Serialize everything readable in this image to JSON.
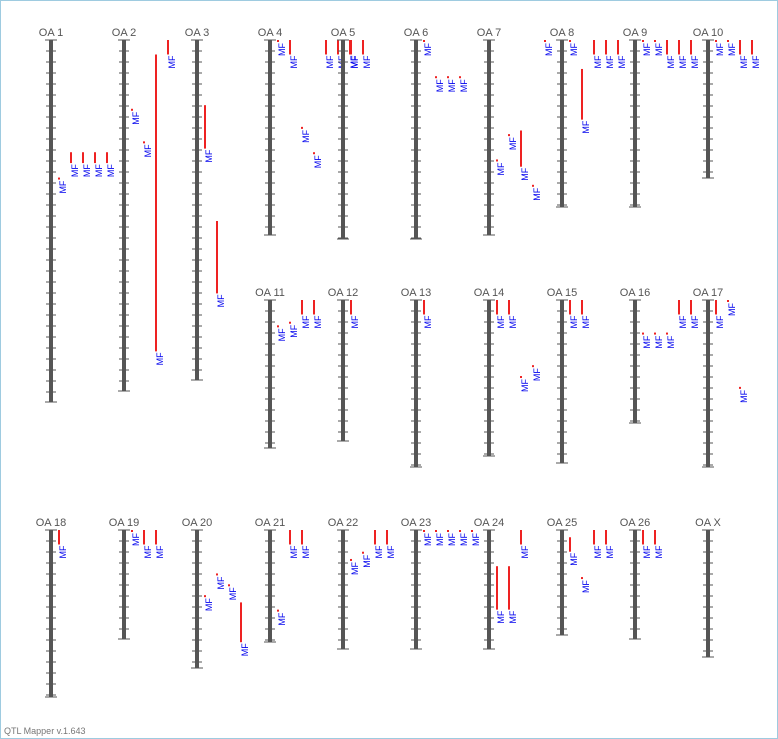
{
  "footer": "QTL Mapper v.1.643",
  "qtl_label": "MF",
  "colors": {
    "chromosome": "#555555",
    "qtl_bar": "#ee2222",
    "qtl_label": "#0000ee",
    "label": "#555555",
    "border": "#9ecbe0"
  },
  "chromosomes": [
    {
      "name": "OA 1",
      "row": 0,
      "col": 0,
      "length": 1.0,
      "qtls": [
        [
          0.38,
          0.38
        ],
        [
          0.31,
          0.34
        ],
        [
          0.31,
          0.34
        ],
        [
          0.31,
          0.34
        ],
        [
          0.31,
          0.34
        ]
      ]
    },
    {
      "name": "OA 2",
      "row": 0,
      "col": 1,
      "length": 0.97,
      "qtls": [
        [
          0.19,
          0.19
        ],
        [
          0.28,
          0.28
        ],
        [
          0.04,
          0.86
        ],
        [
          0.0,
          0.04
        ]
      ]
    },
    {
      "name": "OA 3",
      "row": 0,
      "col": 2,
      "length": 0.94,
      "qtls": [
        [
          0.18,
          0.3
        ],
        [
          0.5,
          0.7
        ]
      ]
    },
    {
      "name": "OA 4",
      "row": 0,
      "col": 3,
      "length": 0.54,
      "qtls": [
        [
          0.0,
          0.0
        ],
        [
          0.0,
          0.04
        ],
        [
          0.24,
          0.24
        ],
        [
          0.31,
          0.31
        ],
        [
          0.0,
          0.04
        ],
        [
          0.0,
          0.04
        ],
        [
          0.0,
          0.04
        ]
      ]
    },
    {
      "name": "OA 5",
      "row": 0,
      "col": 4,
      "length": 0.55,
      "qtls": [
        [
          0.0,
          0.04
        ],
        [
          0.0,
          0.04
        ]
      ]
    },
    {
      "name": "OA 6",
      "row": 0,
      "col": 5,
      "length": 0.55,
      "qtls": [
        [
          0.0,
          0.0
        ],
        [
          0.1,
          0.1
        ],
        [
          0.1,
          0.1
        ],
        [
          0.1,
          0.1
        ]
      ]
    },
    {
      "name": "OA 7",
      "row": 0,
      "col": 6,
      "length": 0.54,
      "qtls": [
        [
          0.33,
          0.33
        ],
        [
          0.26,
          0.26
        ],
        [
          0.25,
          0.35
        ],
        [
          0.4,
          0.4
        ],
        [
          0.0,
          0.0
        ]
      ]
    },
    {
      "name": "OA 8",
      "row": 0,
      "col": 7,
      "length": 0.46,
      "qtls": [
        [
          0.0,
          0.0
        ],
        [
          0.08,
          0.22
        ],
        [
          0.0,
          0.04
        ],
        [
          0.0,
          0.04
        ],
        [
          0.0,
          0.04
        ]
      ]
    },
    {
      "name": "OA 9",
      "row": 0,
      "col": 8,
      "length": 0.46,
      "qtls": [
        [
          0.0,
          0.0
        ],
        [
          0.0,
          0.0
        ],
        [
          0.0,
          0.04
        ],
        [
          0.0,
          0.04
        ],
        [
          0.0,
          0.04
        ]
      ]
    },
    {
      "name": "OA 10",
      "row": 0,
      "col": 9,
      "length": 0.38,
      "qtls": [
        [
          0.0,
          0.0
        ],
        [
          0.0,
          0.0
        ],
        [
          0.0,
          0.04
        ],
        [
          0.0,
          0.04
        ]
      ]
    },
    {
      "name": "OA 11",
      "row": 1,
      "col": 3,
      "length": 0.41,
      "qtls": [
        [
          0.07,
          0.07
        ],
        [
          0.06,
          0.06
        ],
        [
          0.0,
          0.04
        ],
        [
          0.0,
          0.04
        ]
      ]
    },
    {
      "name": "OA 12",
      "row": 1,
      "col": 4,
      "length": 0.39,
      "qtls": [
        [
          0.0,
          0.04
        ]
      ]
    },
    {
      "name": "OA 13",
      "row": 1,
      "col": 5,
      "length": 0.46,
      "qtls": [
        [
          0.0,
          0.04
        ]
      ]
    },
    {
      "name": "OA 14",
      "row": 1,
      "col": 6,
      "length": 0.43,
      "qtls": [
        [
          0.0,
          0.04
        ],
        [
          0.0,
          0.04
        ],
        [
          0.21,
          0.21
        ],
        [
          0.18,
          0.18
        ]
      ]
    },
    {
      "name": "OA 15",
      "row": 1,
      "col": 7,
      "length": 0.45,
      "qtls": [
        [
          0.0,
          0.04
        ],
        [
          0.0,
          0.04
        ]
      ]
    },
    {
      "name": "OA 16",
      "row": 1,
      "col": 8,
      "length": 0.34,
      "qtls": [
        [
          0.09,
          0.09
        ],
        [
          0.09,
          0.09
        ],
        [
          0.09,
          0.09
        ],
        [
          0.0,
          0.04
        ],
        [
          0.0,
          0.04
        ]
      ]
    },
    {
      "name": "OA 17",
      "row": 1,
      "col": 9,
      "length": 0.46,
      "qtls": [
        [
          0.0,
          0.04
        ],
        [
          0.0,
          0.0
        ],
        [
          0.24,
          0.24
        ]
      ]
    },
    {
      "name": "OA 18",
      "row": 2,
      "col": 0,
      "length": 0.46,
      "qtls": [
        [
          0.0,
          0.04
        ]
      ]
    },
    {
      "name": "OA 19",
      "row": 2,
      "col": 1,
      "length": 0.3,
      "qtls": [
        [
          0.0,
          0.0
        ],
        [
          0.0,
          0.04
        ],
        [
          0.0,
          0.04
        ]
      ]
    },
    {
      "name": "OA 20",
      "row": 2,
      "col": 2,
      "length": 0.38,
      "qtls": [
        [
          0.18,
          0.18
        ],
        [
          0.12,
          0.12
        ],
        [
          0.15,
          0.15
        ],
        [
          0.2,
          0.31
        ]
      ]
    },
    {
      "name": "OA 21",
      "row": 2,
      "col": 3,
      "length": 0.31,
      "qtls": [
        [
          0.22,
          0.22
        ],
        [
          0.0,
          0.04
        ],
        [
          0.0,
          0.04
        ]
      ]
    },
    {
      "name": "OA 22",
      "row": 2,
      "col": 4,
      "length": 0.33,
      "qtls": [
        [
          0.08,
          0.08
        ],
        [
          0.06,
          0.06
        ],
        [
          0.0,
          0.04
        ],
        [
          0.0,
          0.04
        ]
      ]
    },
    {
      "name": "OA 23",
      "row": 2,
      "col": 5,
      "length": 0.33,
      "qtls": [
        [
          0.0,
          0.0
        ],
        [
          0.0,
          0.0
        ],
        [
          0.0,
          0.0
        ],
        [
          0.0,
          0.0
        ],
        [
          0.0,
          0.0
        ]
      ]
    },
    {
      "name": "OA 24",
      "row": 2,
      "col": 6,
      "length": 0.33,
      "qtls": [
        [
          0.1,
          0.22
        ],
        [
          0.1,
          0.22
        ],
        [
          0.0,
          0.04
        ]
      ]
    },
    {
      "name": "OA 25",
      "row": 2,
      "col": 7,
      "length": 0.29,
      "qtls": [
        [
          0.02,
          0.06
        ],
        [
          0.13,
          0.13
        ],
        [
          0.0,
          0.04
        ],
        [
          0.0,
          0.04
        ]
      ]
    },
    {
      "name": "OA 26",
      "row": 2,
      "col": 8,
      "length": 0.3,
      "qtls": [
        [
          0.0,
          0.04
        ],
        [
          0.0,
          0.04
        ]
      ]
    },
    {
      "name": "OA X",
      "row": 2,
      "col": 9,
      "length": 0.35,
      "qtls": []
    }
  ]
}
